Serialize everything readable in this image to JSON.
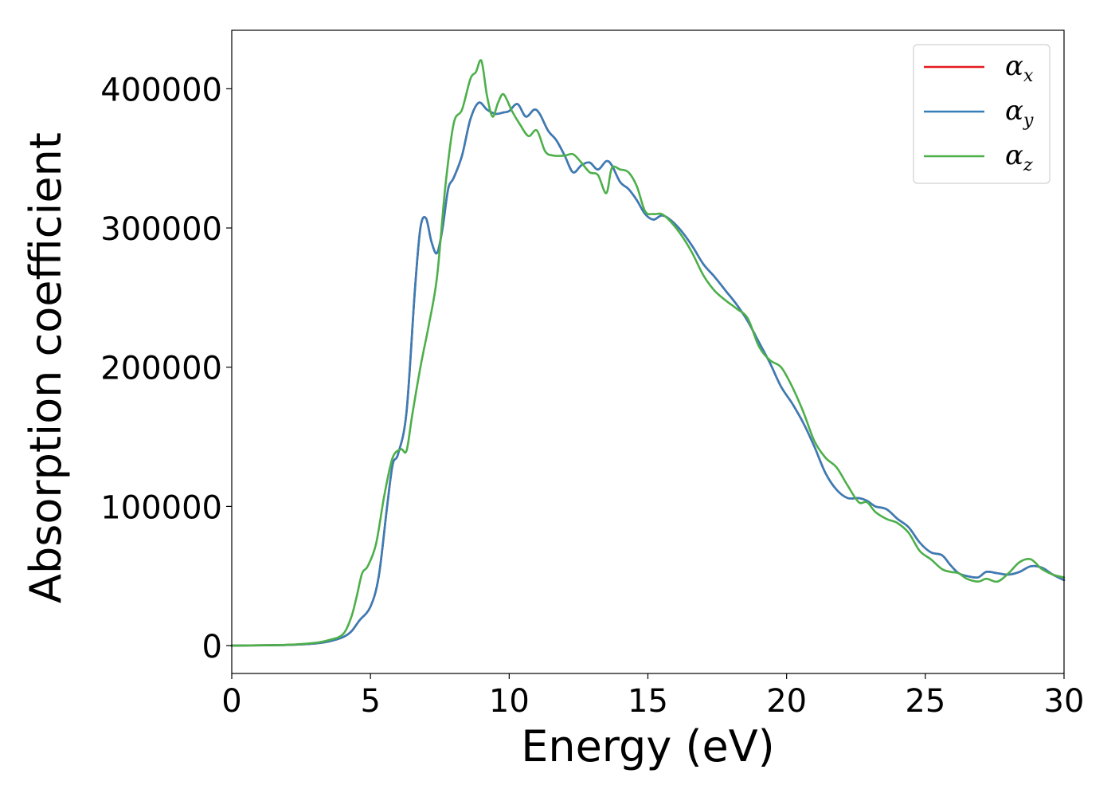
{
  "chart_data": {
    "type": "line",
    "title": "",
    "xlabel": "Energy (eV)",
    "ylabel": "Absorption coefficient",
    "xlim": [
      0,
      30
    ],
    "ylim": [
      -20000,
      442000
    ],
    "xticks": [
      0,
      5,
      10,
      15,
      20,
      25,
      30
    ],
    "xtick_labels": [
      "0",
      "5",
      "10",
      "15",
      "20",
      "25",
      "30"
    ],
    "yticks": [
      0,
      100000,
      200000,
      300000,
      400000
    ],
    "ytick_labels": [
      "0",
      "100000",
      "200000",
      "300000",
      "400000"
    ],
    "grid": false,
    "legend_position": "top-right",
    "series": [
      {
        "name": "αx",
        "symbol": "α",
        "subscript": "x",
        "color": "#e41a1c",
        "x": [
          0,
          2,
          3,
          3.5,
          4,
          4.3,
          4.6,
          5,
          5.3,
          5.6,
          5.8,
          6.0,
          6.3,
          6.6,
          6.8,
          7.0,
          7.2,
          7.4,
          7.6,
          7.8,
          8.0,
          8.3,
          8.6,
          8.9,
          9.2,
          9.5,
          9.8,
          10.0,
          10.3,
          10.6,
          10.9,
          11.1,
          11.4,
          11.7,
          12.0,
          12.3,
          12.6,
          12.9,
          13.2,
          13.5,
          13.7,
          14.0,
          14.3,
          14.6,
          14.9,
          15.2,
          15.5,
          15.8,
          16.2,
          16.6,
          17.0,
          17.4,
          17.8,
          18.2,
          18.6,
          19.0,
          19.4,
          19.8,
          20.2,
          20.6,
          21.0,
          21.4,
          21.8,
          22.2,
          22.6,
          22.9,
          23.2,
          23.6,
          24.0,
          24.4,
          24.8,
          25.2,
          25.6,
          25.9,
          26.2,
          26.5,
          26.9,
          27.2,
          27.6,
          28.0,
          28.4,
          28.8,
          29.2,
          29.6,
          30.0
        ],
        "values": [
          0,
          500,
          1500,
          3000,
          6000,
          10000,
          18000,
          28000,
          50000,
          100000,
          130000,
          138000,
          168000,
          255000,
          300000,
          307000,
          290000,
          282000,
          300000,
          328000,
          336000,
          352000,
          378000,
          390000,
          385000,
          382000,
          383000,
          384000,
          389000,
          380000,
          385000,
          382000,
          370000,
          363000,
          352000,
          340000,
          345000,
          347000,
          342000,
          348000,
          345000,
          333000,
          328000,
          320000,
          310000,
          306000,
          309000,
          306000,
          298000,
          287000,
          274000,
          265000,
          255000,
          245000,
          233000,
          218000,
          203000,
          186000,
          174000,
          160000,
          143000,
          124000,
          112000,
          106000,
          106000,
          104000,
          100000,
          98000,
          91000,
          85000,
          74000,
          67000,
          65000,
          58000,
          52000,
          50000,
          49000,
          53000,
          52000,
          51000,
          53000,
          57000,
          56000,
          51000,
          47000
        ]
      },
      {
        "name": "αy",
        "symbol": "α",
        "subscript": "y",
        "color": "#377eb8",
        "x": [
          0,
          2,
          3,
          3.5,
          4,
          4.3,
          4.6,
          5,
          5.3,
          5.6,
          5.8,
          6.0,
          6.3,
          6.6,
          6.8,
          7.0,
          7.2,
          7.4,
          7.6,
          7.8,
          8.0,
          8.3,
          8.6,
          8.9,
          9.2,
          9.5,
          9.8,
          10.0,
          10.3,
          10.6,
          10.9,
          11.1,
          11.4,
          11.7,
          12.0,
          12.3,
          12.6,
          12.9,
          13.2,
          13.5,
          13.7,
          14.0,
          14.3,
          14.6,
          14.9,
          15.2,
          15.5,
          15.8,
          16.2,
          16.6,
          17.0,
          17.4,
          17.8,
          18.2,
          18.6,
          19.0,
          19.4,
          19.8,
          20.2,
          20.6,
          21.0,
          21.4,
          21.8,
          22.2,
          22.6,
          22.9,
          23.2,
          23.6,
          24.0,
          24.4,
          24.8,
          25.2,
          25.6,
          25.9,
          26.2,
          26.5,
          26.9,
          27.2,
          27.6,
          28.0,
          28.4,
          28.8,
          29.2,
          29.6,
          30.0
        ],
        "values": [
          0,
          500,
          1500,
          3000,
          6000,
          10000,
          18000,
          28000,
          50000,
          100000,
          130000,
          138000,
          168000,
          255000,
          300000,
          307000,
          290000,
          282000,
          300000,
          328000,
          336000,
          352000,
          378000,
          390000,
          385000,
          382000,
          383000,
          384000,
          389000,
          380000,
          385000,
          382000,
          370000,
          363000,
          352000,
          340000,
          345000,
          347000,
          342000,
          348000,
          345000,
          333000,
          328000,
          320000,
          310000,
          306000,
          309000,
          306000,
          298000,
          287000,
          274000,
          265000,
          255000,
          245000,
          233000,
          218000,
          203000,
          186000,
          174000,
          160000,
          143000,
          124000,
          112000,
          106000,
          106000,
          104000,
          100000,
          98000,
          91000,
          85000,
          74000,
          67000,
          65000,
          58000,
          52000,
          50000,
          49000,
          53000,
          52000,
          51000,
          53000,
          57000,
          56000,
          51000,
          47000
        ]
      },
      {
        "name": "αz",
        "symbol": "α",
        "subscript": "z",
        "color": "#4daf4a",
        "x": [
          0,
          2,
          3,
          3.5,
          4,
          4.3,
          4.5,
          4.7,
          4.9,
          5.2,
          5.5,
          5.8,
          6.1,
          6.3,
          6.5,
          6.8,
          7.1,
          7.4,
          7.7,
          8.0,
          8.3,
          8.6,
          8.8,
          9.0,
          9.2,
          9.4,
          9.6,
          9.8,
          10.1,
          10.4,
          10.7,
          11.0,
          11.3,
          11.6,
          12.0,
          12.3,
          12.6,
          12.9,
          13.2,
          13.5,
          13.7,
          14.0,
          14.3,
          14.6,
          14.9,
          15.2,
          15.5,
          15.8,
          16.2,
          16.6,
          17.0,
          17.4,
          17.8,
          18.2,
          18.6,
          19.0,
          19.4,
          19.8,
          20.2,
          20.6,
          21.0,
          21.4,
          21.8,
          22.2,
          22.6,
          22.9,
          23.2,
          23.6,
          24.0,
          24.4,
          24.8,
          25.2,
          25.6,
          25.9,
          26.2,
          26.5,
          26.9,
          27.2,
          27.6,
          28.0,
          28.4,
          28.8,
          29.2,
          29.6,
          30.0
        ],
        "values": [
          0,
          600,
          2000,
          4000,
          8000,
          20000,
          35000,
          52000,
          57000,
          73000,
          108000,
          135000,
          141000,
          140000,
          165000,
          200000,
          230000,
          265000,
          330000,
          375000,
          385000,
          407000,
          412000,
          420000,
          395000,
          380000,
          390000,
          396000,
          384000,
          374000,
          366000,
          370000,
          355000,
          352000,
          352000,
          353000,
          347000,
          340000,
          338000,
          325000,
          343000,
          342000,
          340000,
          330000,
          312000,
          310000,
          310000,
          305000,
          295000,
          282000,
          266000,
          255000,
          248000,
          242000,
          235000,
          215000,
          205000,
          200000,
          186000,
          168000,
          147000,
          135000,
          128000,
          115000,
          103000,
          103000,
          96000,
          91000,
          88000,
          81000,
          68000,
          62000,
          55000,
          53000,
          52000,
          48000,
          46000,
          48000,
          46000,
          52000,
          60000,
          62000,
          55000,
          51000,
          49000
        ]
      }
    ]
  }
}
